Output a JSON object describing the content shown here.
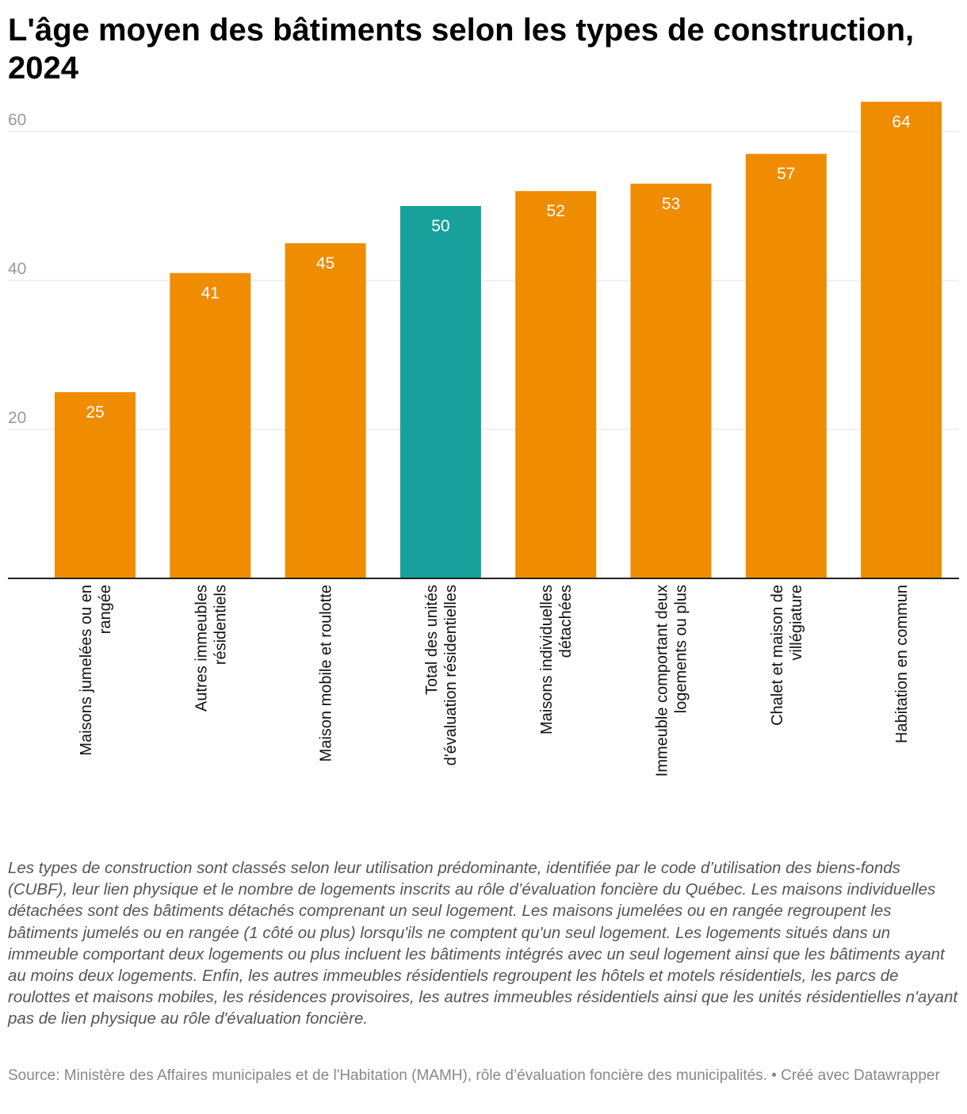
{
  "title": "L'âge moyen des bâtiments selon les types de construction, 2024",
  "notes": "Les types de construction sont classés selon leur utilisation prédominante, identifiée par le code d’utilisation des biens-fonds (CUBF), leur lien physique et le nombre de logements inscrits au rôle d’évaluation foncière du Québec. Les maisons individuelles détachées sont des bâtiments détachés comprenant un seul logement. Les maisons jumelées ou en rangée regroupent les bâtiments jumelés ou en rangée (1 côté ou plus) lorsqu'ils ne comptent qu'un seul logement. Les logements situés dans un immeuble comportant deux logements ou plus incluent les bâtiments intégrés avec un seul logement ainsi que les bâtiments ayant au moins deux logements. Enfin, les autres immeubles résidentiels regroupent les hôtels et motels résidentiels, les parcs de roulottes et maisons mobiles, les résidences provisoires, les autres immeubles résidentiels ainsi que les unités résidentielles n'ayant pas de lien physique au rôle d'évaluation foncière.",
  "source": "Source: Ministère des Affaires municipales et de l'Habitation (MAMH), rôle d’évaluation foncière des municipalités. • Créé avec Datawrapper",
  "chart_data": {
    "type": "bar",
    "title": "L'âge moyen des bâtiments selon les types de construction, 2024",
    "xlabel": "",
    "ylabel": "",
    "ylim": [
      0,
      60
    ],
    "yticks": [
      20,
      40,
      60
    ],
    "grid": true,
    "categories": [
      [
        "Maisons jumelées ou en",
        "rangée"
      ],
      [
        "Autres immeubles",
        "résidentiels"
      ],
      [
        "Maison mobile et roulotte"
      ],
      [
        "Total des unités",
        "d'évaluation résidentielles"
      ],
      [
        "Maisons individuelles",
        "détachées"
      ],
      [
        "Immeuble comportant deux",
        "logements ou plus"
      ],
      [
        "Chalet et maison de",
        "villégiature"
      ],
      [
        "Habitation en commun"
      ]
    ],
    "values": [
      25,
      41,
      45,
      50,
      52,
      53,
      57,
      64
    ],
    "colors": [
      "#ef8c00",
      "#ef8c00",
      "#ef8c00",
      "#18a19c",
      "#ef8c00",
      "#ef8c00",
      "#ef8c00",
      "#ef8c00"
    ]
  }
}
